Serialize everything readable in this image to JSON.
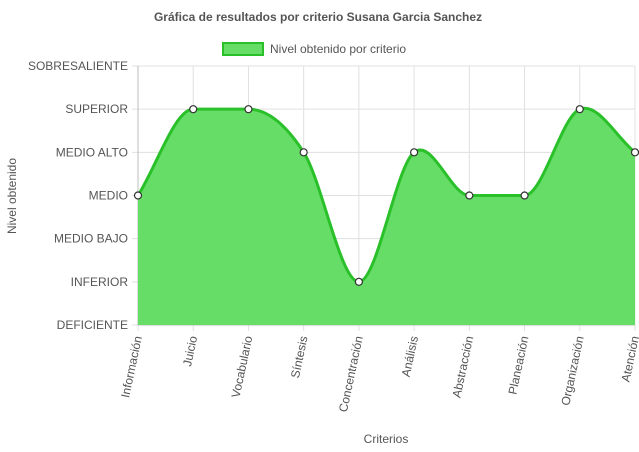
{
  "chart_data": {
    "type": "area",
    "title": "Gráfica de resultados por criterio Susana Garcia Sanchez",
    "xlabel": "Criterios",
    "ylabel": "Nivel obtenido",
    "levels": [
      "DEFICIENTE",
      "INFERIOR",
      "MEDIO BAJO",
      "MEDIO",
      "MEDIO ALTO",
      "SUPERIOR",
      "SOBRESALIENTE"
    ],
    "categories": [
      "Información",
      "Juicio",
      "Vocabulario",
      "Síntesis",
      "Concentración",
      "Análisis",
      "Abstracción",
      "Planeación",
      "Organización",
      "Atención"
    ],
    "series": [
      {
        "name": "Nivel obtenido por criterio",
        "values": [
          "MEDIO",
          "SUPERIOR",
          "SUPERIOR",
          "MEDIO ALTO",
          "INFERIOR",
          "MEDIO ALTO",
          "MEDIO",
          "MEDIO",
          "SUPERIOR",
          "MEDIO ALTO"
        ]
      }
    ],
    "legend_position": "top",
    "grid": true,
    "colors": {
      "fill": "#66dd66",
      "line": "#2ac02a",
      "point_fill": "#ffffff",
      "point_stroke": "#333333"
    }
  }
}
